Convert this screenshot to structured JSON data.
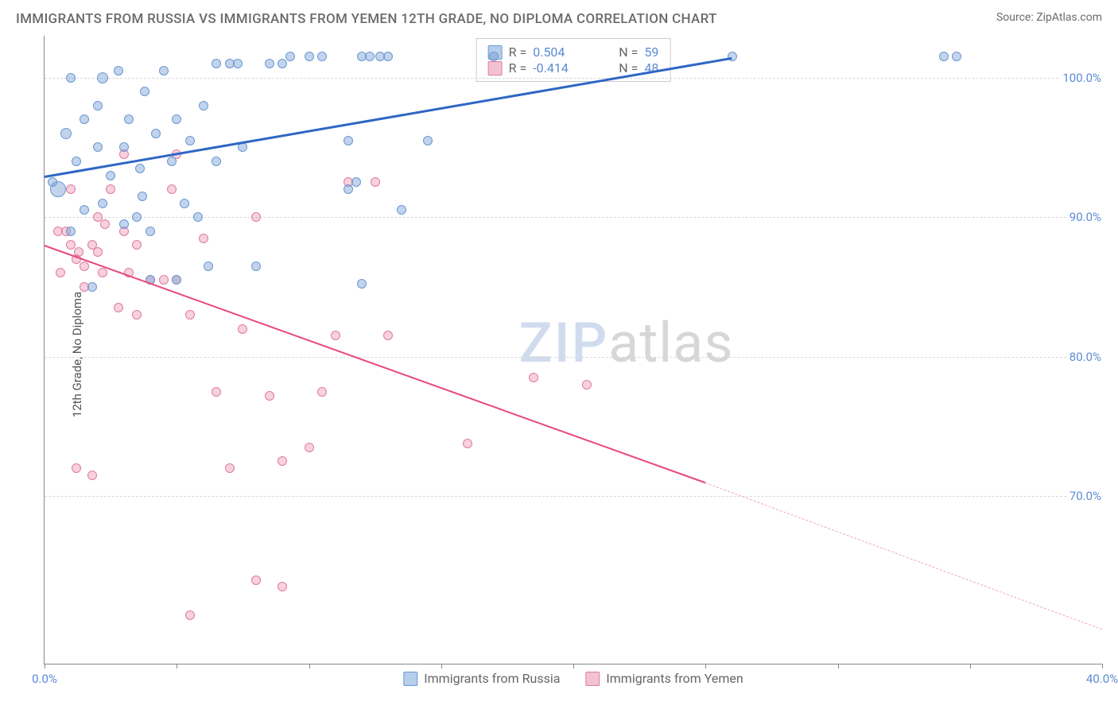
{
  "title": "IMMIGRANTS FROM RUSSIA VS IMMIGRANTS FROM YEMEN 12TH GRADE, NO DIPLOMA CORRELATION CHART",
  "source_label": "Source: ",
  "source_name": "ZipAtlas.com",
  "ylabel": "12th Grade, No Diploma",
  "watermark_a": "ZIP",
  "watermark_b": "atlas",
  "chart": {
    "xlim": [
      0,
      40
    ],
    "ylim": [
      58,
      103
    ],
    "xticks": [
      0,
      5,
      10,
      15,
      20,
      25,
      30,
      35,
      40
    ],
    "xtick_labels": {
      "0": "0.0%",
      "40": "40.0%"
    },
    "yticks": [
      70,
      80,
      90,
      100
    ],
    "ytick_labels": {
      "70": "70.0%",
      "80": "80.0%",
      "90": "90.0%",
      "100": "100.0%"
    },
    "grid_color": "#d8d8d8",
    "background": "#ffffff"
  },
  "series": {
    "russia": {
      "label": "Immigrants from Russia",
      "color_fill": "rgba(120,160,215,0.45)",
      "color_stroke": "#6a98d0",
      "swatch_fill": "#b6cdeb",
      "swatch_border": "#6a98d0",
      "r_label": "R =",
      "r_value": "0.504",
      "n_label": "N =",
      "n_value": "59",
      "trend": {
        "x1": 0,
        "y1": 93.0,
        "x2": 26,
        "y2": 101.5,
        "color": "#2f66c4",
        "width": 3
      },
      "points": [
        [
          0.5,
          92,
          20
        ],
        [
          0.8,
          96,
          14
        ],
        [
          1.0,
          89,
          12
        ],
        [
          1.2,
          94,
          12
        ],
        [
          1.5,
          97,
          12
        ],
        [
          1.8,
          85,
          12
        ],
        [
          2.0,
          98,
          12
        ],
        [
          2.2,
          91,
          12
        ],
        [
          2.5,
          93,
          12
        ],
        [
          2.2,
          100,
          14
        ],
        [
          3.0,
          95,
          12
        ],
        [
          3.2,
          97,
          12
        ],
        [
          3.5,
          90,
          12
        ],
        [
          3.8,
          99,
          12
        ],
        [
          3.6,
          93.5,
          12
        ],
        [
          4.0,
          85.5,
          12
        ],
        [
          4.2,
          96,
          12
        ],
        [
          4.5,
          100.5,
          12
        ],
        [
          4.8,
          94,
          12
        ],
        [
          5.0,
          97,
          12
        ],
        [
          5.3,
          91,
          12
        ],
        [
          5.5,
          95.5,
          12
        ],
        [
          6.0,
          98,
          12
        ],
        [
          6.2,
          86.5,
          12
        ],
        [
          5.8,
          90,
          12
        ],
        [
          6.5,
          94,
          12
        ],
        [
          7.0,
          101,
          12
        ],
        [
          7.3,
          101,
          12
        ],
        [
          7.5,
          95,
          12
        ],
        [
          8.0,
          86.5,
          12
        ],
        [
          4.0,
          89,
          12
        ],
        [
          8.5,
          101,
          12
        ],
        [
          9.0,
          101,
          12
        ],
        [
          10.0,
          101.5,
          12
        ],
        [
          10.5,
          101.5,
          12
        ],
        [
          11.5,
          95.5,
          12
        ],
        [
          12.0,
          101.5,
          12
        ],
        [
          12.3,
          101.5,
          12
        ],
        [
          13.0,
          101.5,
          12
        ],
        [
          12.7,
          101.5,
          12
        ],
        [
          11.5,
          92,
          12
        ],
        [
          11.8,
          92.5,
          12
        ],
        [
          12.0,
          85.2,
          12
        ],
        [
          13.5,
          90.5,
          12
        ],
        [
          14.5,
          95.5,
          12
        ],
        [
          9.3,
          101.5,
          12
        ],
        [
          17.0,
          101.5,
          12
        ],
        [
          26.0,
          101.5,
          12
        ],
        [
          34.0,
          101.5,
          12
        ],
        [
          34.5,
          101.5,
          12
        ],
        [
          3.0,
          89.5,
          12
        ],
        [
          1.5,
          90.5,
          12
        ],
        [
          2.8,
          100.5,
          12
        ],
        [
          1.0,
          100,
          12
        ],
        [
          2.0,
          95,
          12
        ],
        [
          0.3,
          92.5,
          12
        ],
        [
          6.5,
          101,
          12
        ],
        [
          5.0,
          85.5,
          12
        ],
        [
          3.7,
          91.5,
          12
        ]
      ]
    },
    "yemen": {
      "label": "Immigrants from Yemen",
      "color_fill": "rgba(235,140,170,0.40)",
      "color_stroke": "#e07ba0",
      "swatch_fill": "#f3c2d2",
      "swatch_border": "#e07ba0",
      "r_label": "R =",
      "r_value": "-0.414",
      "n_label": "N =",
      "n_value": "48",
      "trend": {
        "x1": 0,
        "y1": 88.0,
        "x2": 25,
        "y2": 71.0,
        "color": "#e8487e",
        "width": 2.5
      },
      "trend_dash": {
        "x1": 25,
        "y1": 71.0,
        "x2": 40,
        "y2": 60.5,
        "color": "#f0a8bd",
        "width": 1.5
      },
      "points": [
        [
          0.5,
          89,
          12
        ],
        [
          0.8,
          89,
          12
        ],
        [
          1.0,
          88,
          12
        ],
        [
          1.2,
          87,
          12
        ],
        [
          1.0,
          92,
          12
        ],
        [
          1.5,
          86.5,
          12
        ],
        [
          1.3,
          87.5,
          12
        ],
        [
          1.8,
          88,
          12
        ],
        [
          1.5,
          85,
          12
        ],
        [
          2.0,
          87.5,
          12
        ],
        [
          2.2,
          86,
          12
        ],
        [
          2.5,
          92,
          12
        ],
        [
          2.3,
          89.5,
          12
        ],
        [
          2.8,
          83.5,
          12
        ],
        [
          3.0,
          94.5,
          12
        ],
        [
          3.2,
          86,
          12
        ],
        [
          3.5,
          88,
          12
        ],
        [
          3.0,
          89,
          12
        ],
        [
          4.0,
          85.5,
          12
        ],
        [
          4.5,
          85.5,
          12
        ],
        [
          5.0,
          85.5,
          12
        ],
        [
          5.5,
          83,
          12
        ],
        [
          4.8,
          92,
          12
        ],
        [
          6.0,
          88.5,
          12
        ],
        [
          6.5,
          77.5,
          12
        ],
        [
          7.0,
          72,
          12
        ],
        [
          7.5,
          82,
          12
        ],
        [
          8.0,
          90,
          12
        ],
        [
          8.5,
          77.2,
          12
        ],
        [
          9.0,
          72.5,
          12
        ],
        [
          9.0,
          63.5,
          12
        ],
        [
          10.0,
          73.5,
          12
        ],
        [
          10.5,
          77.5,
          12
        ],
        [
          11.0,
          81.5,
          12
        ],
        [
          11.5,
          92.5,
          12
        ],
        [
          8.0,
          64,
          12
        ],
        [
          5.5,
          61.5,
          12
        ],
        [
          1.8,
          71.5,
          12
        ],
        [
          1.2,
          72,
          12
        ],
        [
          3.5,
          83,
          12
        ],
        [
          16.0,
          73.8,
          12
        ],
        [
          18.5,
          78.5,
          12
        ],
        [
          20.5,
          78,
          12
        ],
        [
          13.0,
          81.5,
          12
        ],
        [
          12.5,
          92.5,
          12
        ],
        [
          5.0,
          94.5,
          12
        ],
        [
          0.6,
          86,
          12
        ],
        [
          2.0,
          90,
          12
        ]
      ]
    }
  }
}
